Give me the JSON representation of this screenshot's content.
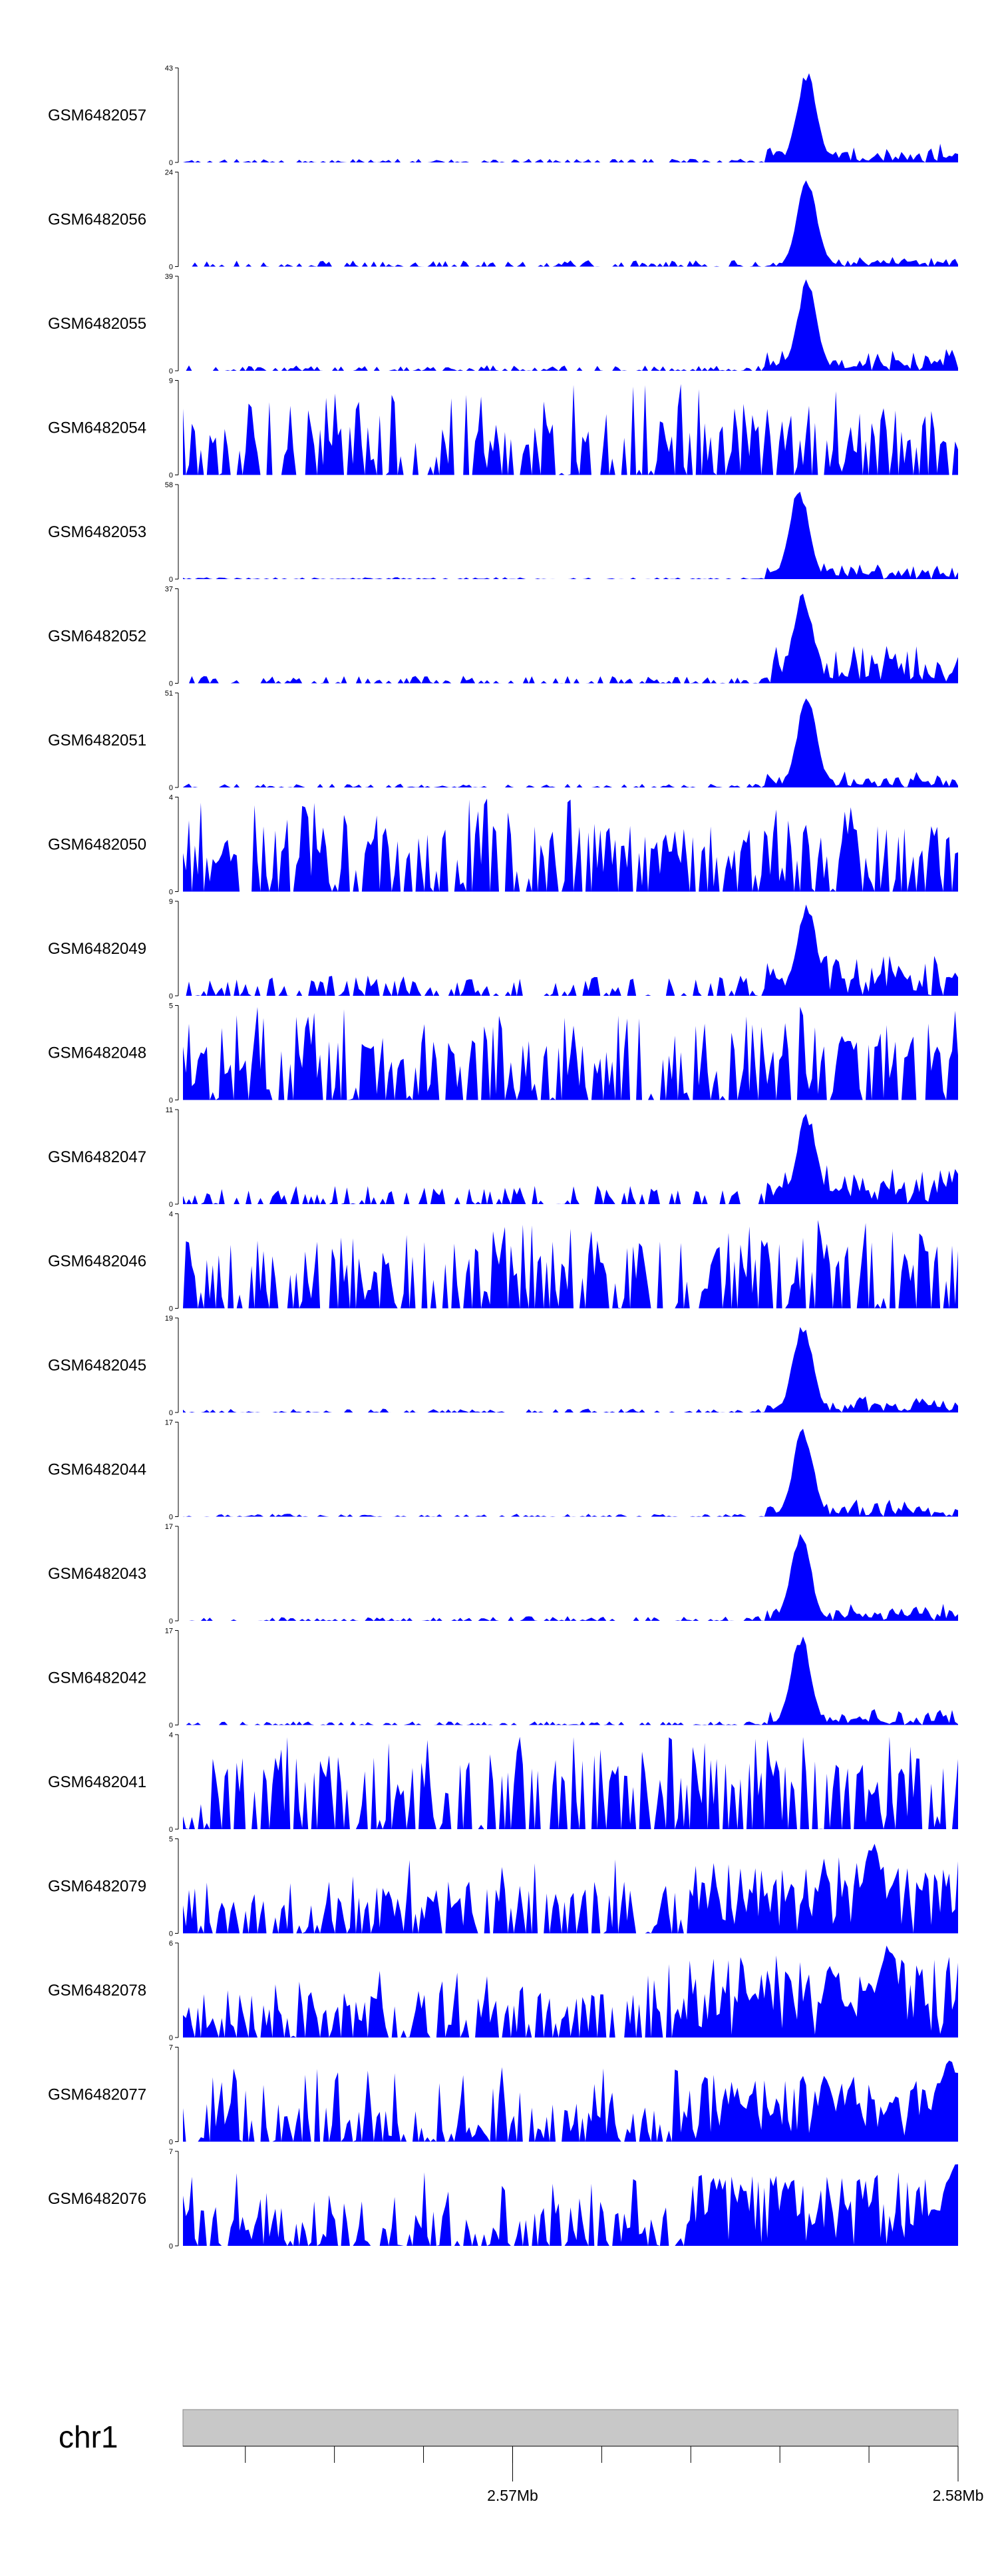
{
  "chart_data": {
    "type": "area",
    "title": "",
    "fill_color": "#0000FF",
    "ideogram_color": "#C8C8C8",
    "chromosome": "chr1",
    "x_axis": {
      "range_mb": [
        2.5626,
        2.58
      ],
      "major_ticks": [
        {
          "value": 2.57,
          "label": "2.57Mb"
        },
        {
          "value": 2.58,
          "label": "2.58Mb"
        }
      ],
      "minor_ticks": [
        2.564,
        2.566,
        2.568,
        2.57,
        2.572,
        2.574,
        2.576,
        2.578,
        2.58
      ]
    },
    "series": [
      {
        "name": "GSM6482057",
        "ymin": 0,
        "ymax": 43,
        "profile": "peak",
        "peak_x": 0.805,
        "bg": 0.04,
        "tail": 0.22,
        "seed": 11
      },
      {
        "name": "GSM6482056",
        "ymin": 0,
        "ymax": 24,
        "profile": "peak",
        "peak_x": 0.805,
        "bg": 0.07,
        "tail": 0.12,
        "seed": 23
      },
      {
        "name": "GSM6482055",
        "ymin": 0,
        "ymax": 39,
        "profile": "peak",
        "peak_x": 0.805,
        "bg": 0.06,
        "tail": 0.25,
        "seed": 37
      },
      {
        "name": "GSM6482054",
        "ymin": 0,
        "ymax": 9,
        "profile": "spiky",
        "peak_x": 0.805,
        "bg": 0.35,
        "tail": 0.6,
        "seed": 41
      },
      {
        "name": "GSM6482053",
        "ymin": 0,
        "ymax": 58,
        "profile": "peak",
        "peak_x": 0.795,
        "bg": 0.02,
        "tail": 0.2,
        "seed": 53
      },
      {
        "name": "GSM6482052",
        "ymin": 0,
        "ymax": 37,
        "profile": "peak",
        "peak_x": 0.8,
        "bg": 0.08,
        "tail": 0.45,
        "seed": 61
      },
      {
        "name": "GSM6482051",
        "ymin": 0,
        "ymax": 51,
        "profile": "peak",
        "peak_x": 0.805,
        "bg": 0.04,
        "tail": 0.2,
        "seed": 71
      },
      {
        "name": "GSM6482050",
        "ymin": 0,
        "ymax": 4,
        "profile": "spiky",
        "peak_x": 0.665,
        "bg": 0.45,
        "tail": 0.5,
        "seed": 83
      },
      {
        "name": "GSM6482049",
        "ymin": 0,
        "ymax": 9,
        "profile": "peak",
        "peak_x": 0.805,
        "bg": 0.22,
        "tail": 0.5,
        "seed": 97
      },
      {
        "name": "GSM6482048",
        "ymin": 0,
        "ymax": 5,
        "profile": "spiky",
        "peak_x": 0.8,
        "bg": 0.4,
        "tail": 0.6,
        "seed": 101
      },
      {
        "name": "GSM6482047",
        "ymin": 0,
        "ymax": 11,
        "profile": "peak",
        "peak_x": 0.805,
        "bg": 0.2,
        "tail": 0.45,
        "seed": 113
      },
      {
        "name": "GSM6482046",
        "ymin": 0,
        "ymax": 4,
        "profile": "spiky",
        "peak_x": 0.785,
        "bg": 0.45,
        "tail": 0.55,
        "seed": 127
      },
      {
        "name": "GSM6482045",
        "ymin": 0,
        "ymax": 19,
        "profile": "peak",
        "peak_x": 0.8,
        "bg": 0.04,
        "tail": 0.18,
        "seed": 131
      },
      {
        "name": "GSM6482044",
        "ymin": 0,
        "ymax": 17,
        "profile": "peak",
        "peak_x": 0.8,
        "bg": 0.03,
        "tail": 0.2,
        "seed": 149
      },
      {
        "name": "GSM6482043",
        "ymin": 0,
        "ymax": 17,
        "profile": "peak",
        "peak_x": 0.797,
        "bg": 0.05,
        "tail": 0.2,
        "seed": 157
      },
      {
        "name": "GSM6482042",
        "ymin": 0,
        "ymax": 17,
        "profile": "peak",
        "peak_x": 0.797,
        "bg": 0.04,
        "tail": 0.22,
        "seed": 163
      },
      {
        "name": "GSM6482041",
        "ymin": 0,
        "ymax": 4,
        "profile": "spiky",
        "peak_x": 0.5,
        "bg": 0.5,
        "tail": 0.55,
        "seed": 173
      },
      {
        "name": "GSM6482079",
        "ymin": 0,
        "ymax": 5,
        "profile": "broad",
        "peak_x": 0.89,
        "bg": 0.4,
        "tail": 0.7,
        "seed": 181
      },
      {
        "name": "GSM6482078",
        "ymin": 0,
        "ymax": 6,
        "profile": "broad",
        "peak_x": 0.91,
        "bg": 0.35,
        "tail": 0.75,
        "seed": 191
      },
      {
        "name": "GSM6482077",
        "ymin": 0,
        "ymax": 7,
        "profile": "broad",
        "peak_x": 0.99,
        "bg": 0.3,
        "tail": 0.6,
        "seed": 199
      },
      {
        "name": "GSM6482076",
        "ymin": 0,
        "ymax": 7,
        "profile": "broad",
        "peak_x": 0.995,
        "bg": 0.3,
        "tail": 0.65,
        "seed": 211
      }
    ]
  }
}
